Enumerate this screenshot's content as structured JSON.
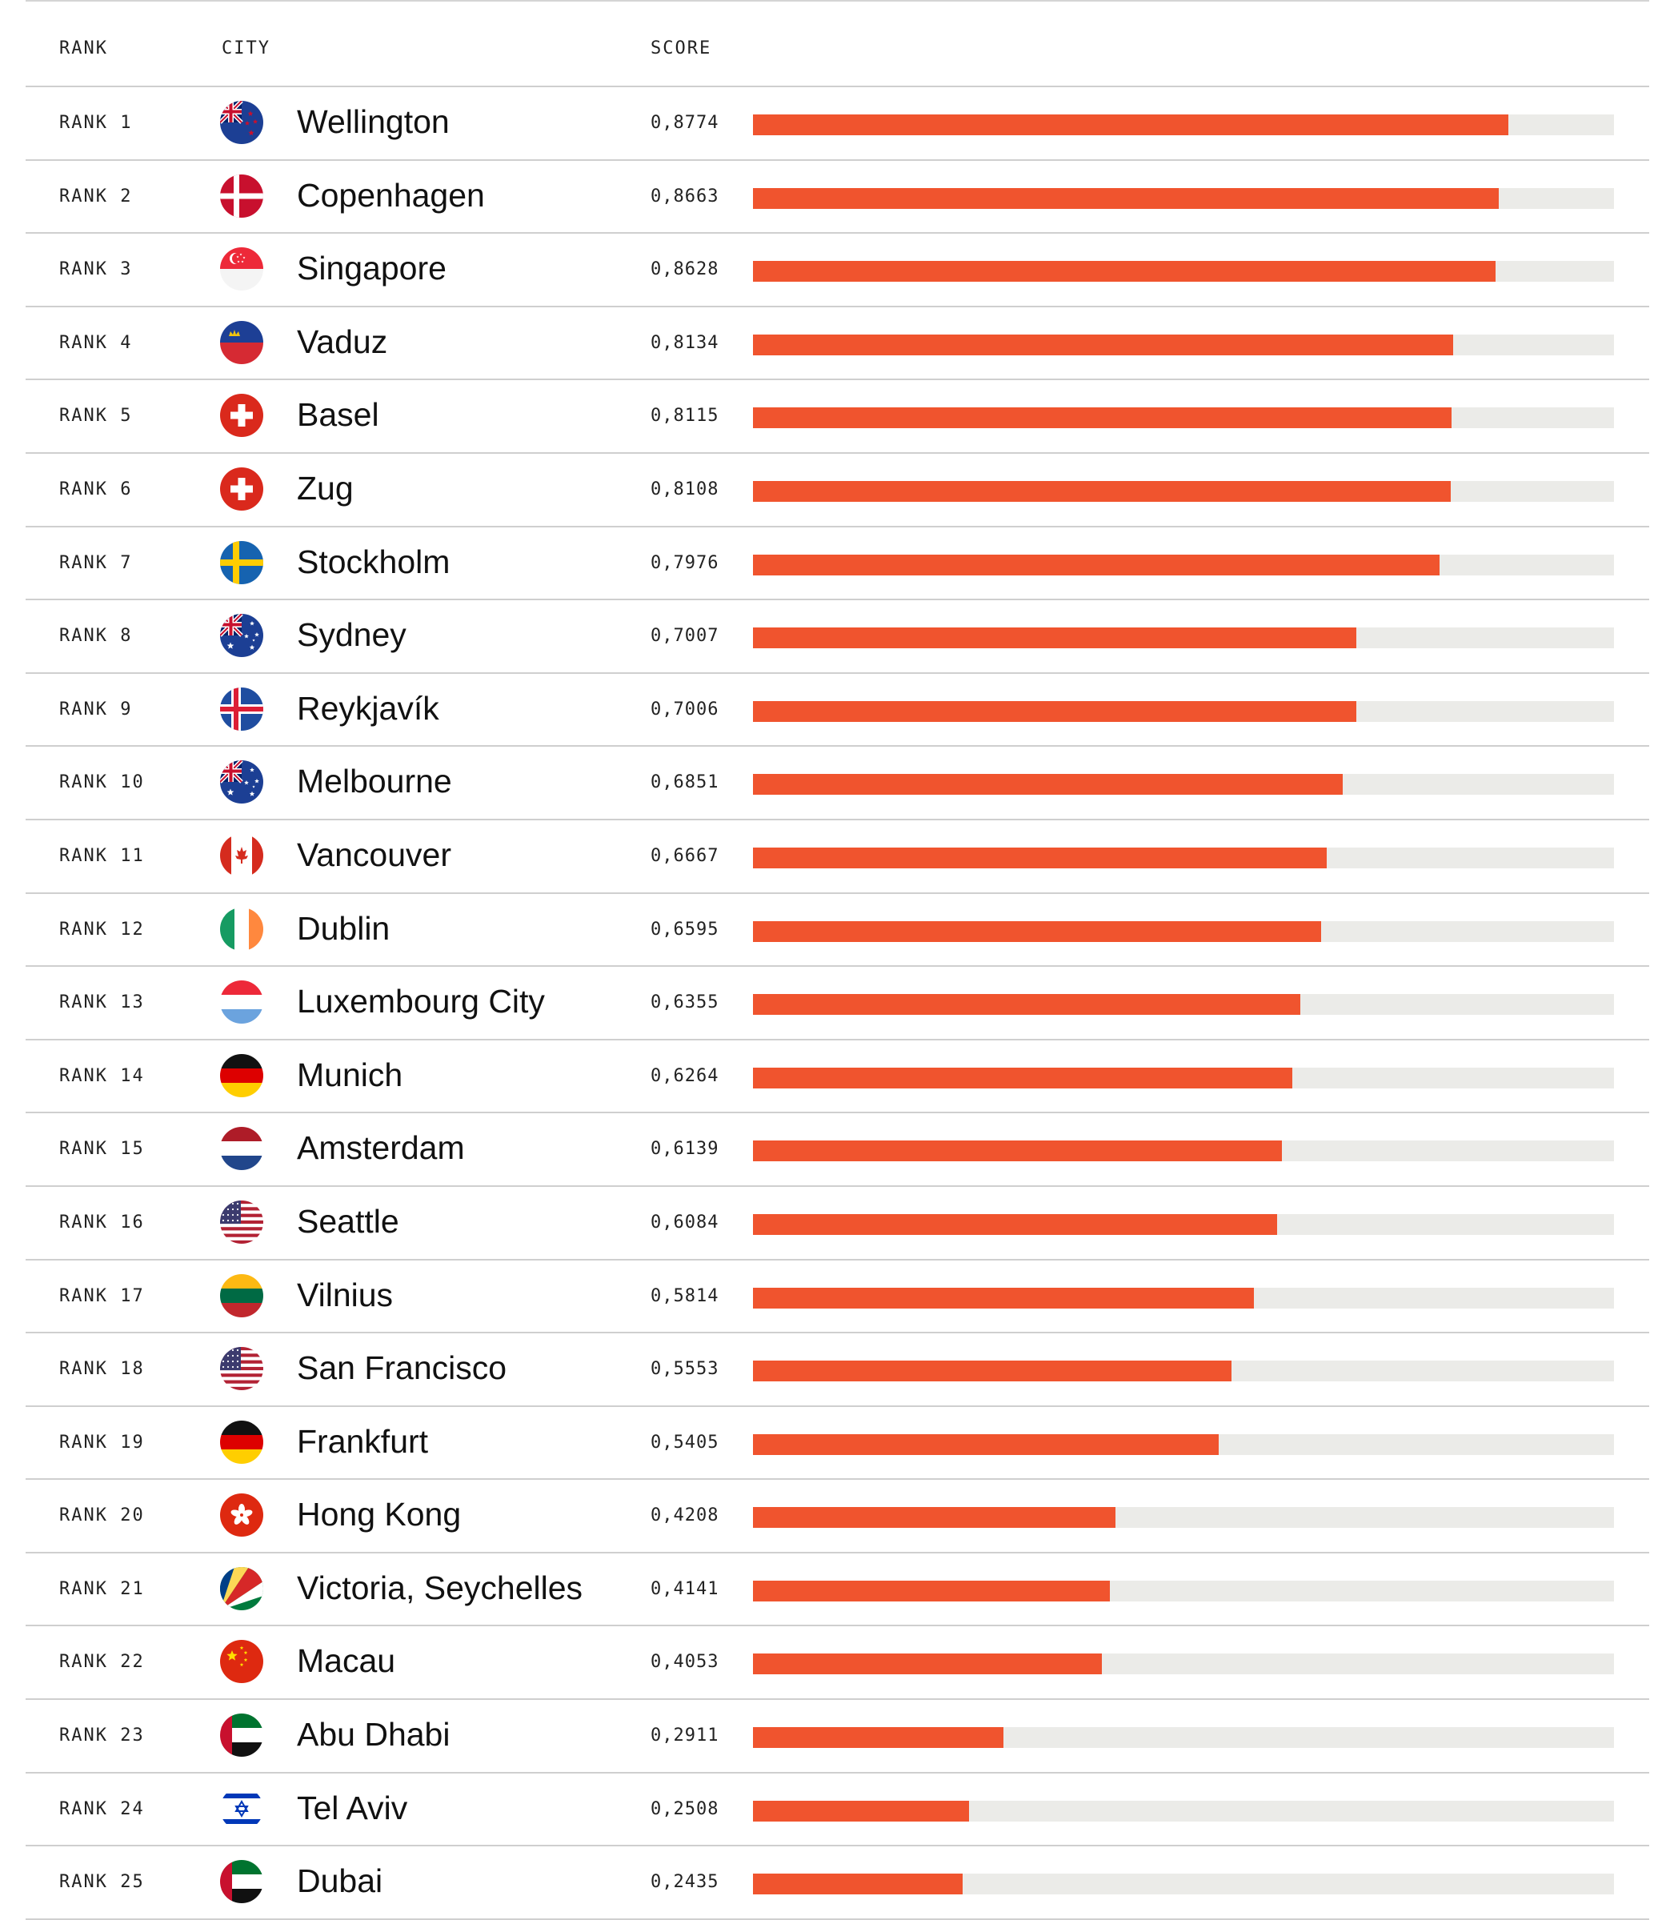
{
  "header": {
    "rank_label": "RANK",
    "city_label": "CITY",
    "score_label": "SCORE"
  },
  "colors": {
    "bar_fill": "#f0542e",
    "bar_track": "#ebebe8",
    "rule": "#cfcfcf"
  },
  "rows": [
    {
      "rank": "RANK 1",
      "city": "Wellington",
      "score": "0,8774",
      "flag": "new-zealand-flag-icon"
    },
    {
      "rank": "RANK 2",
      "city": "Copenhagen",
      "score": "0,8663",
      "flag": "denmark-flag-icon"
    },
    {
      "rank": "RANK 3",
      "city": "Singapore",
      "score": "0,8628",
      "flag": "singapore-flag-icon"
    },
    {
      "rank": "RANK 4",
      "city": "Vaduz",
      "score": "0,8134",
      "flag": "liechtenstein-flag-icon"
    },
    {
      "rank": "RANK 5",
      "city": "Basel",
      "score": "0,8115",
      "flag": "switzerland-flag-icon"
    },
    {
      "rank": "RANK 6",
      "city": "Zug",
      "score": "0,8108",
      "flag": "switzerland-flag-icon"
    },
    {
      "rank": "RANK 7",
      "city": "Stockholm",
      "score": "0,7976",
      "flag": "sweden-flag-icon"
    },
    {
      "rank": "RANK 8",
      "city": "Sydney",
      "score": "0,7007",
      "flag": "australia-flag-icon"
    },
    {
      "rank": "RANK 9",
      "city": "Reykjavík",
      "score": "0,7006",
      "flag": "iceland-flag-icon"
    },
    {
      "rank": "RANK 10",
      "city": "Melbourne",
      "score": "0,6851",
      "flag": "australia-flag-icon"
    },
    {
      "rank": "RANK 11",
      "city": "Vancouver",
      "score": "0,6667",
      "flag": "canada-flag-icon"
    },
    {
      "rank": "RANK 12",
      "city": "Dublin",
      "score": "0,6595",
      "flag": "ireland-flag-icon"
    },
    {
      "rank": "RANK 13",
      "city": "Luxembourg City",
      "score": "0,6355",
      "flag": "luxembourg-flag-icon"
    },
    {
      "rank": "RANK 14",
      "city": "Munich",
      "score": "0,6264",
      "flag": "germany-flag-icon"
    },
    {
      "rank": "RANK 15",
      "city": "Amsterdam",
      "score": "0,6139",
      "flag": "netherlands-flag-icon"
    },
    {
      "rank": "RANK 16",
      "city": "Seattle",
      "score": "0,6084",
      "flag": "usa-flag-icon"
    },
    {
      "rank": "RANK 17",
      "city": "Vilnius",
      "score": "0,5814",
      "flag": "lithuania-flag-icon"
    },
    {
      "rank": "RANK 18",
      "city": "San Francisco",
      "score": "0,5553",
      "flag": "usa-flag-icon"
    },
    {
      "rank": "RANK 19",
      "city": "Frankfurt",
      "score": "0,5405",
      "flag": "germany-flag-icon"
    },
    {
      "rank": "RANK 20",
      "city": "Hong Kong",
      "score": "0,4208",
      "flag": "hong-kong-flag-icon"
    },
    {
      "rank": "RANK 21",
      "city": "Victoria, Seychelles",
      "score": "0,4141",
      "flag": "seychelles-flag-icon"
    },
    {
      "rank": "RANK 22",
      "city": "Macau",
      "score": "0,4053",
      "flag": "china-flag-icon"
    },
    {
      "rank": "RANK 23",
      "city": "Abu Dhabi",
      "score": "0,2911",
      "flag": "uae-flag-icon"
    },
    {
      "rank": "RANK 24",
      "city": "Tel Aviv",
      "score": "0,2508",
      "flag": "israel-flag-icon"
    },
    {
      "rank": "RANK 25",
      "city": "Dubai",
      "score": "0,2435",
      "flag": "uae-flag-icon"
    }
  ],
  "chart_data": {
    "type": "bar",
    "title": "",
    "xlabel": "SCORE",
    "ylabel": "CITY",
    "orientation": "horizontal",
    "grid": false,
    "xlim": [
      0,
      1
    ],
    "categories": [
      "Wellington",
      "Copenhagen",
      "Singapore",
      "Vaduz",
      "Basel",
      "Zug",
      "Stockholm",
      "Sydney",
      "Reykjavík",
      "Melbourne",
      "Vancouver",
      "Dublin",
      "Luxembourg City",
      "Munich",
      "Amsterdam",
      "Seattle",
      "Vilnius",
      "San Francisco",
      "Frankfurt",
      "Hong Kong",
      "Victoria, Seychelles",
      "Macau",
      "Abu Dhabi",
      "Tel Aviv",
      "Dubai"
    ],
    "values": [
      0.8774,
      0.8663,
      0.8628,
      0.8134,
      0.8115,
      0.8108,
      0.7976,
      0.7007,
      0.7006,
      0.6851,
      0.6667,
      0.6595,
      0.6355,
      0.6264,
      0.6139,
      0.6084,
      0.5814,
      0.5553,
      0.5405,
      0.4208,
      0.4141,
      0.4053,
      0.2911,
      0.2508,
      0.2435
    ]
  }
}
